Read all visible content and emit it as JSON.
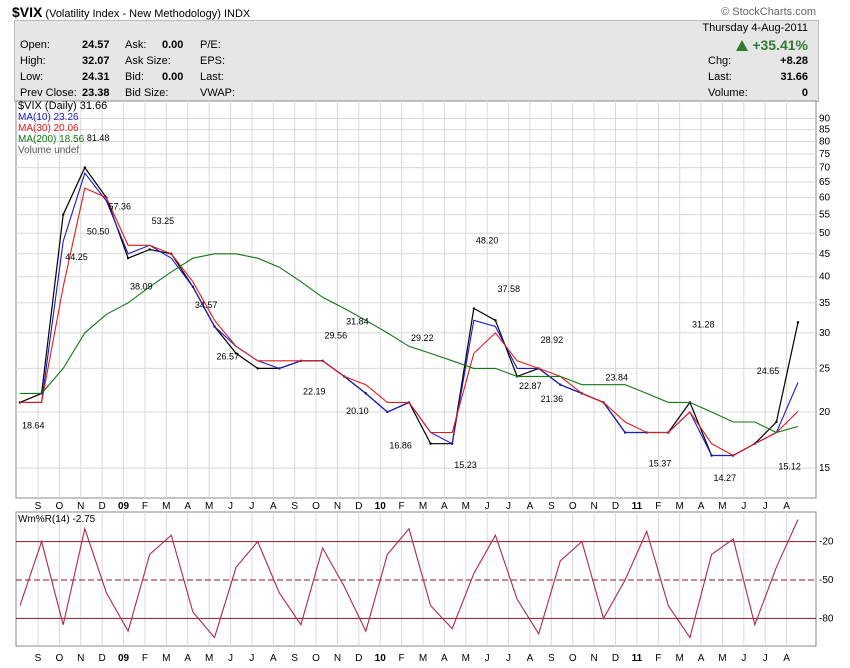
{
  "header": {
    "symbol": "$VIX",
    "name": "(Volatility Index - New Methodology)",
    "exchange": "INDX",
    "source": "© StockCharts.com"
  },
  "quote": {
    "open_label": "Open:",
    "open": "24.57",
    "high_label": "High:",
    "high": "32.07",
    "low_label": "Low:",
    "low": "24.31",
    "prev_label": "Prev Close:",
    "prev": "23.38",
    "ask_label": "Ask:",
    "ask": "0.00",
    "asksize_label": "Ask Size:",
    "asksize": "",
    "bid_label": "Bid:",
    "bid": "0.00",
    "bidsize_label": "Bid Size:",
    "bidsize": "",
    "pe_label": "P/E:",
    "eps_label": "EPS:",
    "last_label2": "Last:",
    "vwap_label": "VWAP:",
    "date": "Thursday  4-Aug-2011",
    "change_pct": "+35.41%",
    "chg_label": "Chg:",
    "chg": "+8.28",
    "last_label": "Last:",
    "last": "31.66",
    "volume_label": "Volume:",
    "volume": "0"
  },
  "legend": {
    "main": "$VIX (Daily) 31.66",
    "ma10": "MA(10) 23.26",
    "ma30": "MA(30) 20.06",
    "ma200": "MA(200) 18.56",
    "volume": "Volume undef",
    "wr": "Wm%R(14) -2.75"
  },
  "colors": {
    "price": "#000000",
    "ma10": "#1a1acc",
    "ma30": "#e01b1b",
    "ma200": "#117711",
    "wr": "#b0284a",
    "grid": "#d8d8d8",
    "panel_bg": "#ffffff"
  },
  "chart_data": [
    {
      "type": "line",
      "title": "$VIX (Daily) 31.66",
      "y_scale": "log",
      "ylim": [
        13,
        95
      ],
      "y_ticks": [
        "15",
        "20",
        "25",
        "30",
        "35",
        "40",
        "45",
        "50",
        "55",
        "60",
        "65",
        "70",
        "75",
        "80",
        "85",
        "90"
      ],
      "x_ticks": [
        "S",
        "O",
        "N",
        "D",
        "09",
        "F",
        "M",
        "A",
        "M",
        "J",
        "J",
        "A",
        "S",
        "O",
        "N",
        "D",
        "10",
        "F",
        "M",
        "A",
        "M",
        "J",
        "J",
        "A",
        "S",
        "O",
        "N",
        "D",
        "11",
        "F",
        "M",
        "A",
        "M",
        "J",
        "J",
        "A"
      ],
      "series": [
        {
          "name": "$VIX (Daily)",
          "x": [
            "2008-08",
            "2008-09",
            "2008-10",
            "2008-11",
            "2008-12",
            "2009-01",
            "2009-02",
            "2009-03",
            "2009-04",
            "2009-05",
            "2009-06",
            "2009-07",
            "2009-08",
            "2009-09",
            "2009-10",
            "2009-11",
            "2009-12",
            "2010-01",
            "2010-02",
            "2010-03",
            "2010-04",
            "2010-05",
            "2010-06",
            "2010-07",
            "2010-08",
            "2010-09",
            "2010-10",
            "2010-11",
            "2010-12",
            "2011-01",
            "2011-02",
            "2011-03",
            "2011-04",
            "2011-05",
            "2011-06",
            "2011-07",
            "2011-08"
          ],
          "values": [
            21,
            22,
            55,
            70,
            60,
            44,
            46,
            45,
            38,
            31,
            27,
            25,
            25,
            26,
            26,
            24,
            22,
            20,
            21,
            17,
            17,
            34,
            32,
            24,
            25,
            23,
            22,
            21,
            18,
            18,
            18,
            21,
            16,
            16,
            17,
            19,
            31.66
          ]
        },
        {
          "name": "MA(10)",
          "values": [
            21,
            21,
            48,
            68,
            59,
            45,
            47,
            44,
            38,
            31,
            28,
            26,
            25,
            26,
            26,
            24,
            22,
            20,
            21,
            18,
            17,
            32,
            31,
            25,
            25,
            23,
            22,
            21,
            18,
            18,
            18,
            20,
            16,
            16,
            17,
            18,
            23.26
          ]
        },
        {
          "name": "MA(30)",
          "values": [
            21,
            21,
            38,
            63,
            60,
            47,
            47,
            45,
            39,
            32,
            28,
            26,
            26,
            26,
            26,
            24,
            23,
            21,
            21,
            18,
            18,
            27,
            30,
            26,
            25,
            24,
            22,
            21,
            19,
            18,
            18,
            20,
            17,
            16,
            17,
            18,
            20.06
          ]
        },
        {
          "name": "MA(200)",
          "values": [
            22,
            22,
            25,
            30,
            33,
            35,
            38,
            41,
            44,
            45,
            45,
            44,
            42,
            39,
            36,
            34,
            32,
            30,
            28,
            27,
            26,
            25,
            25,
            24,
            24,
            24,
            23,
            23,
            23,
            22,
            21,
            21,
            20,
            19,
            19,
            18,
            18.56
          ]
        }
      ],
      "annotations": [
        {
          "label": "18.64",
          "x": "2008-08",
          "y": 18.64
        },
        {
          "label": "44.25",
          "x": "2008-10",
          "y": 44.25
        },
        {
          "label": "81.48",
          "x": "2008-11",
          "y": 81.48
        },
        {
          "label": "50.50",
          "x": "2008-11",
          "y": 50.5
        },
        {
          "label": "57.36",
          "x": "2008-12",
          "y": 57.36
        },
        {
          "label": "38.09",
          "x": "2009-01",
          "y": 38.09
        },
        {
          "label": "53.25",
          "x": "2009-02",
          "y": 53.25
        },
        {
          "label": "34.57",
          "x": "2009-04",
          "y": 34.57
        },
        {
          "label": "26.57",
          "x": "2009-05",
          "y": 26.57
        },
        {
          "label": "22.19",
          "x": "2009-09",
          "y": 22.19
        },
        {
          "label": "29.56",
          "x": "2009-10",
          "y": 29.56
        },
        {
          "label": "31.84",
          "x": "2009-11",
          "y": 31.84
        },
        {
          "label": "20.10",
          "x": "2009-11",
          "y": 20.1
        },
        {
          "label": "16.86",
          "x": "2010-01",
          "y": 16.86
        },
        {
          "label": "29.22",
          "x": "2010-02",
          "y": 29.22
        },
        {
          "label": "15.23",
          "x": "2010-04",
          "y": 15.23
        },
        {
          "label": "48.20",
          "x": "2010-05",
          "y": 48.2
        },
        {
          "label": "37.58",
          "x": "2010-06",
          "y": 37.58
        },
        {
          "label": "22.87",
          "x": "2010-07",
          "y": 22.87
        },
        {
          "label": "21.36",
          "x": "2010-08",
          "y": 21.36
        },
        {
          "label": "28.92",
          "x": "2010-08",
          "y": 28.92
        },
        {
          "label": "23.84",
          "x": "2010-11",
          "y": 23.84
        },
        {
          "label": "15.37",
          "x": "2011-01",
          "y": 15.37
        },
        {
          "label": "31.28",
          "x": "2011-03",
          "y": 31.28
        },
        {
          "label": "14.27",
          "x": "2011-04",
          "y": 14.27
        },
        {
          "label": "24.65",
          "x": "2011-06",
          "y": 24.65
        },
        {
          "label": "15.12",
          "x": "2011-07",
          "y": 15.12
        }
      ]
    },
    {
      "type": "line",
      "title": "Wm%R(14) -2.75",
      "ylim": [
        -100,
        0
      ],
      "y_ticks": [
        "-20",
        "-50",
        "-80"
      ],
      "reference_lines": [
        -20,
        -50,
        -80
      ],
      "series": [
        {
          "name": "Wm%R(14)",
          "values": [
            -70,
            -20,
            -85,
            -10,
            -60,
            -90,
            -30,
            -15,
            -75,
            -95,
            -40,
            -20,
            -60,
            -85,
            -25,
            -55,
            -90,
            -30,
            -10,
            -70,
            -88,
            -45,
            -15,
            -65,
            -92,
            -35,
            -20,
            -80,
            -50,
            -12,
            -70,
            -95,
            -30,
            -18,
            -85,
            -40,
            -2.75
          ]
        }
      ]
    }
  ]
}
